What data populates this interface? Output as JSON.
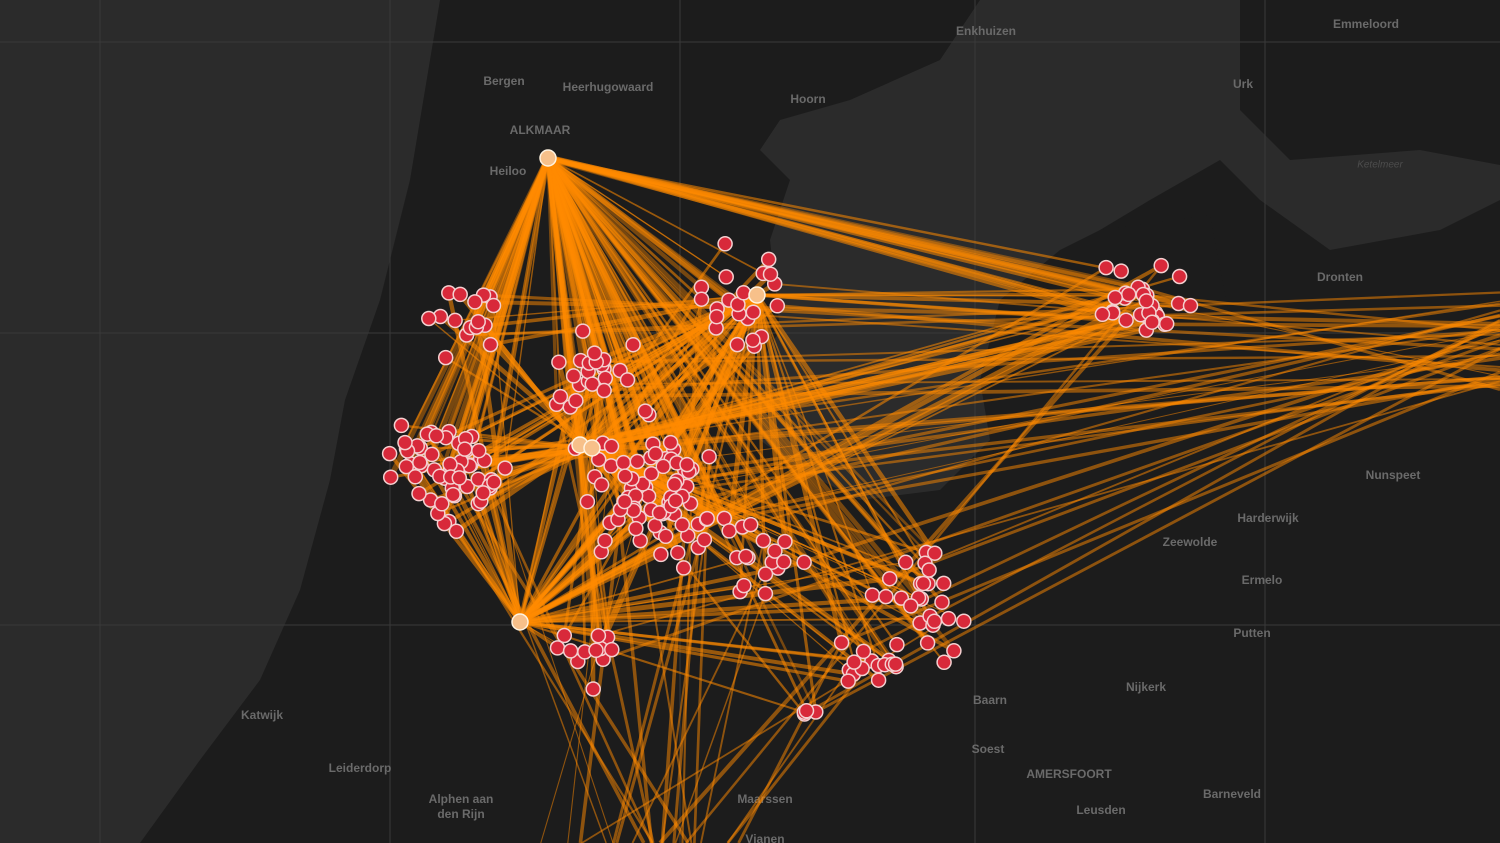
{
  "map": {
    "labels": [
      {
        "text": "Enkhuizen"
      },
      {
        "text": "Emmeloord"
      },
      {
        "text": "Bergen"
      },
      {
        "text": "Heerhugowaard"
      },
      {
        "text": "Hoorn"
      },
      {
        "text": "Urk"
      },
      {
        "text": "ALKMAAR"
      },
      {
        "text": "Heiloo"
      },
      {
        "text": "Ketelmeer"
      },
      {
        "text": "Dronten"
      },
      {
        "text": "Nunspeet"
      },
      {
        "text": "Harderwijk"
      },
      {
        "text": "Zeewolde"
      },
      {
        "text": "Ermelo"
      },
      {
        "text": "Putten"
      },
      {
        "text": "Nijkerk"
      },
      {
        "text": "Barneveld"
      },
      {
        "text": "Baarn"
      },
      {
        "text": "Soest"
      },
      {
        "text": "AMERSFOORT"
      },
      {
        "text": "Leusden"
      },
      {
        "text": "Maarssen"
      },
      {
        "text": "Katwijk"
      },
      {
        "text": "Leiderdorp"
      },
      {
        "text": "Alphen aan"
      },
      {
        "text": "den Rijn"
      },
      {
        "text": "Vianen"
      }
    ]
  }
}
